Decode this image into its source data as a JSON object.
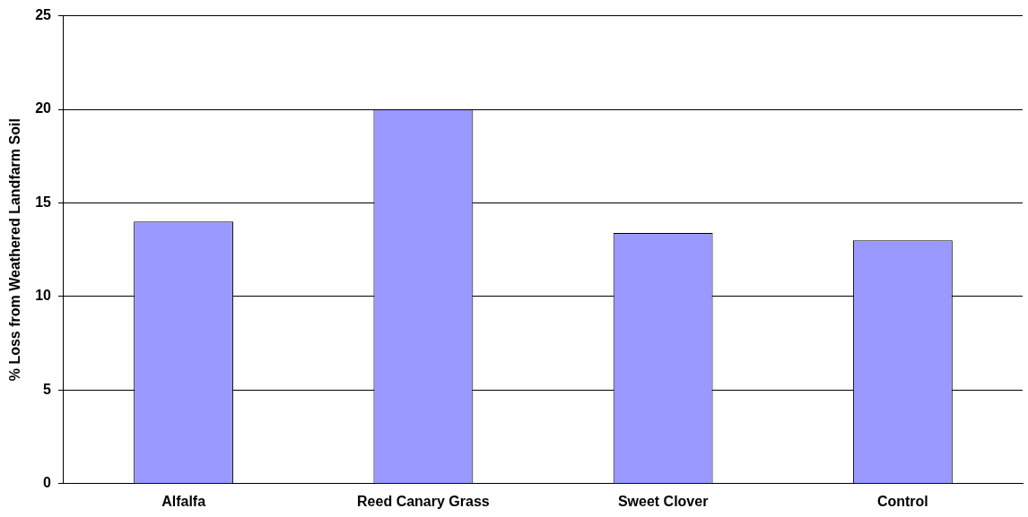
{
  "chart_data": {
    "type": "bar",
    "ylabel": "% Loss from Weathered Landfarm Soil",
    "categories": [
      "Alfalfa",
      "Reed Canary Grass",
      "Sweet Clover",
      "Control"
    ],
    "values": [
      14,
      20,
      13.4,
      13
    ],
    "color": "#9999ff",
    "ylim": [
      0,
      25
    ],
    "yticks": [
      0,
      5,
      10,
      15,
      20,
      25
    ],
    "grid": "y"
  }
}
